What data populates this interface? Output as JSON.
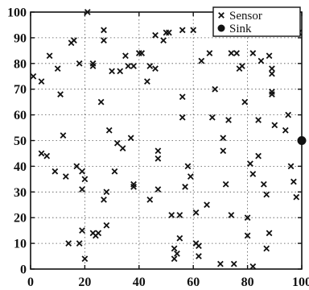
{
  "chart_data": {
    "type": "scatter",
    "title": "",
    "xlabel": "",
    "ylabel": "",
    "xlim": [
      0,
      100
    ],
    "ylim": [
      0,
      100
    ],
    "xticks": [
      "0",
      "20",
      "40",
      "60",
      "80",
      "100"
    ],
    "yticks": [
      "0",
      "10",
      "20",
      "30",
      "40",
      "50",
      "60",
      "70",
      "80",
      "90",
      "100"
    ],
    "grid": true,
    "legend_position": "top-right",
    "series": [
      {
        "name": "Sensor",
        "marker": "x",
        "color": "#111111",
        "points": [
          [
            1,
            75
          ],
          [
            4,
            45
          ],
          [
            4,
            73
          ],
          [
            6,
            44
          ],
          [
            7,
            83
          ],
          [
            9,
            38
          ],
          [
            10,
            78
          ],
          [
            11,
            68
          ],
          [
            12,
            52
          ],
          [
            13,
            36
          ],
          [
            14,
            10
          ],
          [
            15,
            88
          ],
          [
            16,
            89
          ],
          [
            17,
            40
          ],
          [
            18,
            80
          ],
          [
            18,
            10
          ],
          [
            19,
            31
          ],
          [
            19,
            38
          ],
          [
            19,
            15
          ],
          [
            20,
            35
          ],
          [
            20,
            4
          ],
          [
            21,
            100
          ],
          [
            23,
            80
          ],
          [
            23,
            79
          ],
          [
            23,
            14
          ],
          [
            24,
            13
          ],
          [
            25,
            14
          ],
          [
            26,
            65
          ],
          [
            27,
            93
          ],
          [
            27,
            89
          ],
          [
            27,
            27
          ],
          [
            28,
            17
          ],
          [
            28,
            30
          ],
          [
            29,
            54
          ],
          [
            30,
            77
          ],
          [
            31,
            38
          ],
          [
            32,
            49
          ],
          [
            33,
            77
          ],
          [
            34,
            47
          ],
          [
            35,
            83
          ],
          [
            36,
            79
          ],
          [
            37,
            51
          ],
          [
            38,
            79
          ],
          [
            38,
            33
          ],
          [
            38,
            32
          ],
          [
            40,
            84
          ],
          [
            41,
            84
          ],
          [
            43,
            73
          ],
          [
            44,
            79
          ],
          [
            44,
            27
          ],
          [
            46,
            78
          ],
          [
            46,
            91
          ],
          [
            47,
            46
          ],
          [
            47,
            43
          ],
          [
            47,
            31
          ],
          [
            49,
            89
          ],
          [
            50,
            92
          ],
          [
            51,
            92
          ],
          [
            52,
            21
          ],
          [
            53,
            4
          ],
          [
            53,
            8
          ],
          [
            54,
            6
          ],
          [
            55,
            12
          ],
          [
            55,
            21
          ],
          [
            56,
            67
          ],
          [
            56,
            59
          ],
          [
            56,
            93
          ],
          [
            57,
            32
          ],
          [
            58,
            40
          ],
          [
            59,
            36
          ],
          [
            60,
            93
          ],
          [
            61,
            10
          ],
          [
            61,
            22
          ],
          [
            62,
            5
          ],
          [
            62,
            9
          ],
          [
            63,
            81
          ],
          [
            65,
            25
          ],
          [
            66,
            84
          ],
          [
            67,
            59
          ],
          [
            68,
            70
          ],
          [
            69,
            100
          ],
          [
            70,
            2
          ],
          [
            71,
            51
          ],
          [
            71,
            46
          ],
          [
            72,
            33
          ],
          [
            73,
            58
          ],
          [
            74,
            84
          ],
          [
            74,
            21
          ],
          [
            75,
            2
          ],
          [
            76,
            84
          ],
          [
            77,
            78
          ],
          [
            78,
            79
          ],
          [
            79,
            65
          ],
          [
            80,
            13
          ],
          [
            80,
            20
          ],
          [
            81,
            41
          ],
          [
            82,
            84
          ],
          [
            82,
            37
          ],
          [
            82,
            1
          ],
          [
            84,
            58
          ],
          [
            84,
            44
          ],
          [
            85,
            81
          ],
          [
            86,
            33
          ],
          [
            87,
            29
          ],
          [
            87,
            8
          ],
          [
            88,
            14
          ],
          [
            88,
            83
          ],
          [
            89,
            78
          ],
          [
            89,
            76
          ],
          [
            89,
            69
          ],
          [
            89,
            68
          ],
          [
            90,
            56
          ],
          [
            92,
            94
          ],
          [
            93,
            92
          ],
          [
            94,
            54
          ],
          [
            95,
            60
          ],
          [
            96,
            40
          ],
          [
            97,
            34
          ],
          [
            98,
            28
          ],
          [
            99,
            92
          ]
        ]
      },
      {
        "name": "Sink",
        "marker": "filled-circle",
        "color": "#111111",
        "points": [
          [
            100,
            50
          ]
        ]
      }
    ]
  }
}
